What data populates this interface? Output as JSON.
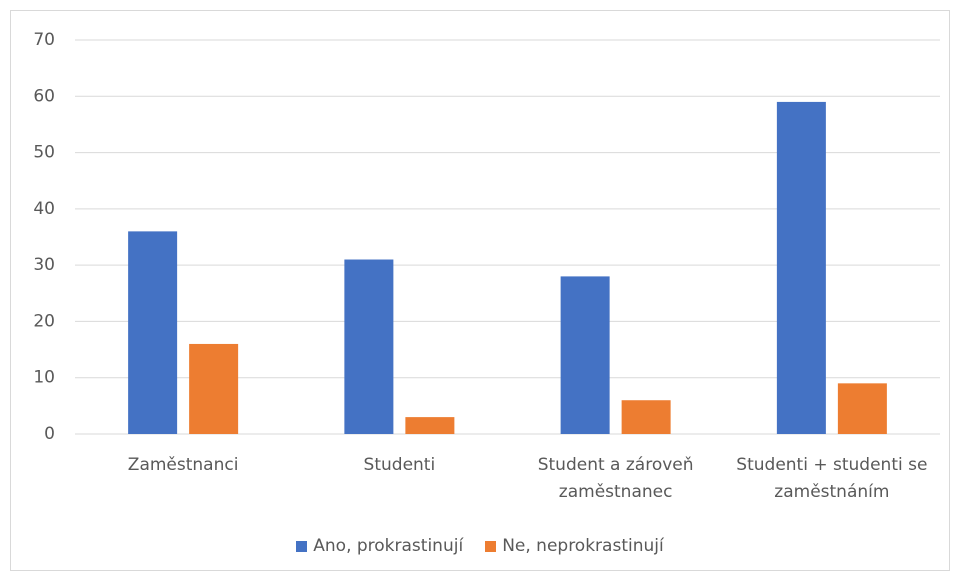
{
  "chart_data": {
    "type": "bar",
    "categories": [
      "Zaměstnanci",
      "Studenti",
      "Student a zároveň zaměstnanec",
      "Studenti + studenti se zaměstnáním"
    ],
    "series": [
      {
        "name": "Ano, prokrastinují",
        "color": "#4472c4",
        "values": [
          36,
          31,
          28,
          59
        ]
      },
      {
        "name": "Ne, neprokrastinují",
        "color": "#ed7d31",
        "values": [
          16,
          3,
          6,
          9
        ]
      }
    ],
    "ylim": [
      0,
      70
    ],
    "yticks": [
      0,
      10,
      20,
      30,
      40,
      50,
      60,
      70
    ],
    "grid": true,
    "legend": "bottom"
  }
}
